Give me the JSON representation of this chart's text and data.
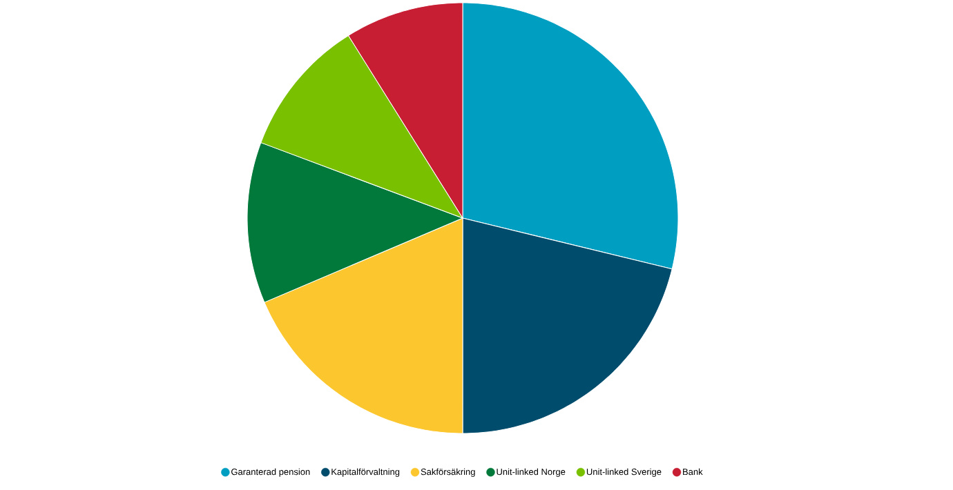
{
  "chart_data": {
    "type": "pie",
    "categories": [
      "Garanterad pension",
      "Kapitalförvaltning",
      "Sakförsäkring",
      "Unit-linked Norge",
      "Unit-linked Sverige",
      "Bank"
    ],
    "values": [
      28.8,
      21.2,
      18.6,
      12.1,
      10.4,
      8.9
    ],
    "colors": [
      "#009fc2",
      "#004c6c",
      "#fcc72e",
      "#00793a",
      "#78c000",
      "#c81e33"
    ],
    "legend": "bottom"
  }
}
